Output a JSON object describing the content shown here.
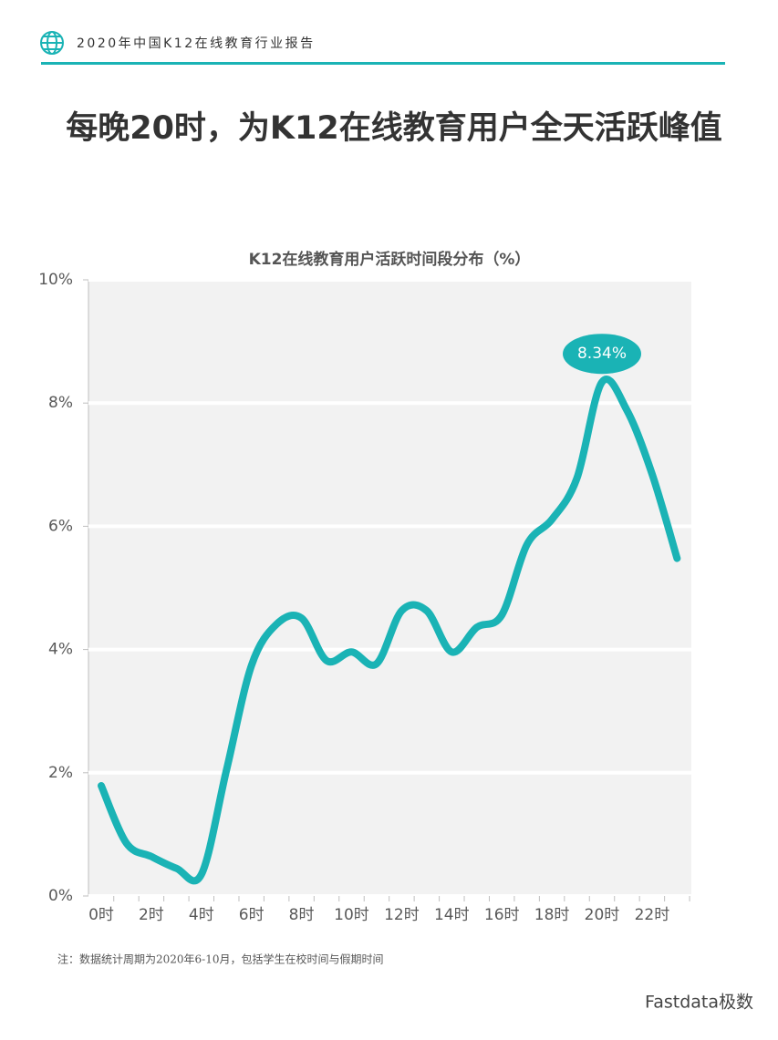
{
  "header": "2020年中国K12在线教育行业报告",
  "headline": "每晚20时，为K12在线教育用户全天活跃峰值",
  "chart_data": {
    "type": "line",
    "title": "K12在线教育用户活跃时间段分布（%）",
    "categories": [
      "0时",
      null,
      "2时",
      null,
      "4时",
      null,
      "6时",
      null,
      "8时",
      null,
      "10时",
      null,
      "12时",
      null,
      "14时",
      null,
      "16时",
      null,
      "18时",
      null,
      "20时",
      null,
      "22时",
      null
    ],
    "values": [
      1.79,
      0.86,
      0.64,
      0.45,
      0.35,
      2.04,
      3.74,
      4.41,
      4.51,
      3.82,
      3.96,
      3.77,
      4.63,
      4.63,
      3.96,
      4.36,
      4.56,
      5.7,
      6.11,
      6.78,
      8.34,
      7.88,
      6.85,
      5.48
    ],
    "value_labels": [
      null,
      null,
      null,
      null,
      null,
      null,
      null,
      null,
      null,
      null,
      null,
      null,
      null,
      null,
      null,
      null,
      null,
      null,
      null,
      null,
      "8.34%",
      null,
      null,
      null
    ],
    "color": "#1ab3b5",
    "ylim": [
      0,
      10
    ],
    "yticks": [
      {
        "value": 0,
        "label": "0%"
      },
      {
        "value": 2,
        "label": "2%"
      },
      {
        "value": 4,
        "label": "4%"
      },
      {
        "value": 6,
        "label": "6%"
      },
      {
        "value": 8,
        "label": "8%"
      },
      {
        "value": 10,
        "label": "10%"
      }
    ],
    "grid": true
  },
  "note": "注：数据统计周期为2020年6-10月，包括学生在校时间与假期时间",
  "watermark": "Fastdata极数"
}
